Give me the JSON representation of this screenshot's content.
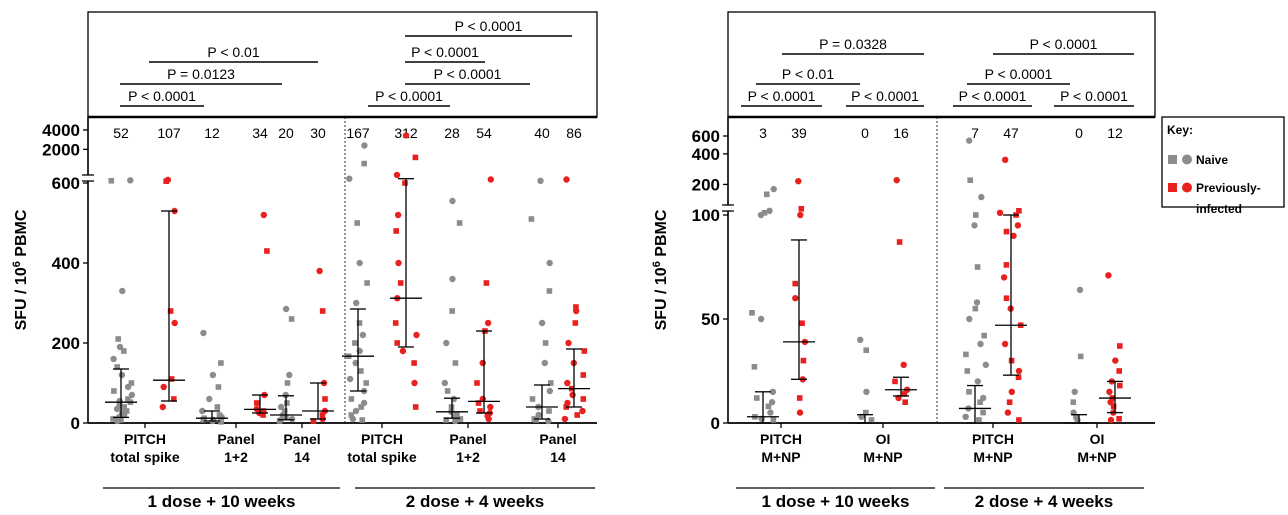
{
  "colors": {
    "naive": "#8c8c8c",
    "previously_infected": "#e8211f",
    "axis": "#000000"
  },
  "key": {
    "title": "Key",
    "naive_label": "Naive",
    "previously_infected_label_1": "Previously-",
    "previously_infected_label_2": "infected"
  },
  "chart_data": [
    {
      "type": "scatter",
      "title": "",
      "ylabel_main": "SFU / 10",
      "ylabel_sup": "6",
      "ylabel_tail": " PBMC",
      "y_scale": "broken axis: linear 0–600 below the break, log-compressed 600–4000 above",
      "ylim": [
        0,
        4000
      ],
      "yticks": [
        "0",
        "200",
        "400",
        "600",
        "2000",
        "4000"
      ],
      "x_groups": [
        {
          "label": "1 dose + 10 weeks",
          "categories": [
            "PITCH total spike",
            "Panel 1+2",
            "Panel 14"
          ]
        },
        {
          "label": "2 dose + 4 weeks",
          "categories": [
            "PITCH total spike",
            "Panel 1+2",
            "Panel 14"
          ]
        }
      ],
      "series": [
        {
          "name": "Naive",
          "medians": [
            52,
            12,
            20,
            167,
            28,
            40
          ],
          "iqr": [
            [
              14,
              135
            ],
            [
              5,
              30
            ],
            [
              8,
              68
            ],
            [
              80,
              285
            ],
            [
              12,
              62
            ],
            [
              10,
              95
            ]
          ],
          "values": [
            [
              660,
              650,
              330,
              210,
              190,
              180,
              160,
              140,
              120,
              100,
              90,
              80,
              70,
              60,
              55,
              52,
              45,
              40,
              35,
              30,
              25,
              20,
              15,
              10,
              5,
              0
            ],
            [
              225,
              150,
              120,
              90,
              60,
              40,
              30,
              20,
              15,
              12,
              10,
              8,
              5,
              3,
              0
            ],
            [
              285,
              260,
              120,
              100,
              70,
              50,
              40,
              30,
              20,
              15,
              10,
              5,
              0
            ],
            [
              2300,
              1200,
              700,
              500,
              400,
              350,
              300,
              250,
              220,
              200,
              180,
              167,
              150,
              130,
              110,
              100,
              80,
              60,
              50,
              40,
              30,
              20,
              10,
              0
            ],
            [
              555,
              500,
              360,
              280,
              200,
              150,
              100,
              80,
              60,
              40,
              28,
              20,
              15,
              10,
              5,
              0
            ],
            [
              650,
              510,
              400,
              330,
              250,
              200,
              150,
              100,
              80,
              60,
              40,
              30,
              20,
              10,
              5,
              0
            ]
          ]
        },
        {
          "name": "Previously-infected",
          "medians": [
            107,
            34,
            30,
            312,
            54,
            86
          ],
          "iqr": [
            [
              55,
              530
            ],
            [
              25,
              70
            ],
            [
              10,
              100
            ],
            [
              190,
              700
            ],
            [
              25,
              230
            ],
            [
              40,
              185
            ]
          ],
          "values": [
            [
              670,
              640,
              530,
              280,
              250,
              110,
              90,
              60,
              40
            ],
            [
              520,
              430,
              70,
              50,
              35,
              30,
              25,
              20
            ],
            [
              380,
              280,
              100,
              60,
              30,
              20,
              10,
              5
            ],
            [
              3300,
              1500,
              800,
              600,
              520,
              480,
              400,
              350,
              312,
              250,
              220,
              200,
              180,
              150,
              100,
              40
            ],
            [
              680,
              350,
              250,
              230,
              150,
              100,
              60,
              50,
              40,
              30,
              25,
              20,
              10
            ],
            [
              680,
              290,
              280,
              250,
              200,
              180,
              150,
              120,
              100,
              86,
              70,
              60,
              50,
              40,
              30,
              20,
              10
            ]
          ]
        }
      ],
      "counts": [
        [
          "52",
          "107"
        ],
        [
          "12",
          "34"
        ],
        [
          "20",
          "30"
        ],
        [
          "167",
          "312"
        ],
        [
          "28",
          "54"
        ],
        [
          "40",
          "86"
        ]
      ],
      "category_labels": [
        [
          "PITCH",
          "total spike"
        ],
        [
          "Panel",
          "1+2"
        ],
        [
          "Panel",
          "14"
        ],
        [
          "PITCH",
          "total spike"
        ],
        [
          "Panel",
          "1+2"
        ],
        [
          "Panel",
          "14"
        ]
      ],
      "comparisons": [
        {
          "text": "P < 0.0001"
        },
        {
          "text": "P = 0.0123"
        },
        {
          "text": "P < 0.01"
        },
        {
          "text": "P < 0.0001"
        },
        {
          "text": "P < 0.0001"
        },
        {
          "text": "P < 0.0001"
        },
        {
          "text": "P < 0.0001"
        }
      ]
    },
    {
      "type": "scatter",
      "title": "",
      "ylabel_main": "SFU / 10",
      "ylabel_sup": "6",
      "ylabel_tail": " PBMC",
      "y_scale": "broken axis: linear 0–100 below the break, log-compressed 100–600 above",
      "ylim": [
        0,
        600
      ],
      "yticks": [
        "0",
        "50",
        "100",
        "200",
        "400",
        "600"
      ],
      "x_groups": [
        {
          "label": "1 dose + 10 weeks",
          "categories": [
            "PITCH M+NP",
            "OI M+NP"
          ]
        },
        {
          "label": "2 dose + 4 weeks",
          "categories": [
            "PITCH M+NP",
            "OI M+NP"
          ]
        }
      ],
      "series": [
        {
          "name": "Naive",
          "medians": [
            3,
            0,
            7,
            0
          ],
          "iqr": [
            [
              0,
              15
            ],
            [
              0,
              4
            ],
            [
              0,
              18
            ],
            [
              0,
              4
            ]
          ],
          "values": [
            [
              180,
              160,
              110,
              105,
              100,
              53,
              50,
              27,
              15,
              12,
              10,
              8,
              5,
              3,
              2,
              0
            ],
            [
              40,
              35,
              15,
              5,
              3,
              0
            ],
            [
              540,
              220,
              150,
              100,
              95,
              75,
              58,
              55,
              50,
              42,
              38,
              33,
              28,
              25,
              20,
              15,
              12,
              10,
              7,
              5,
              3,
              0
            ],
            [
              64,
              32,
              15,
              10,
              5,
              3,
              0
            ]
          ]
        },
        {
          "name": "Previously-infected",
          "medians": [
            39,
            16,
            47,
            12
          ],
          "iqr": [
            [
              21,
              88
            ],
            [
              13,
              22
            ],
            [
              23,
              100
            ],
            [
              5,
              20
            ]
          ],
          "values": [
            [
              215,
              115,
              100,
              67,
              60,
              48,
              39,
              30,
              21,
              12,
              5
            ],
            [
              220,
              87,
              28,
              20,
              16,
              14,
              12,
              10
            ],
            [
              350,
              110,
              105,
              100,
              95,
              92,
              90,
              76,
              70,
              60,
              55,
              47,
              38,
              30,
              25,
              22,
              15,
              10,
              5,
              0
            ],
            [
              71,
              37,
              30,
              25,
              20,
              18,
              15,
              12,
              10,
              8,
              5,
              2,
              0
            ]
          ]
        }
      ],
      "counts": [
        [
          "3",
          "39"
        ],
        [
          "0",
          "16"
        ],
        [
          "7",
          "47"
        ],
        [
          "0",
          "12"
        ]
      ],
      "category_labels": [
        [
          "PITCH",
          "M+NP"
        ],
        [
          "OI",
          "M+NP"
        ],
        [
          "PITCH",
          "M+NP"
        ],
        [
          "OI",
          "M+NP"
        ]
      ],
      "comparisons": [
        {
          "text": "P < 0.0001"
        },
        {
          "text": "P < 0.0001"
        },
        {
          "text": "P < 0.01"
        },
        {
          "text": "P = 0.0328"
        },
        {
          "text": "P < 0.0001"
        },
        {
          "text": "P < 0.0001"
        },
        {
          "text": "P < 0.0001"
        },
        {
          "text": "P < 0.0001"
        }
      ]
    }
  ]
}
